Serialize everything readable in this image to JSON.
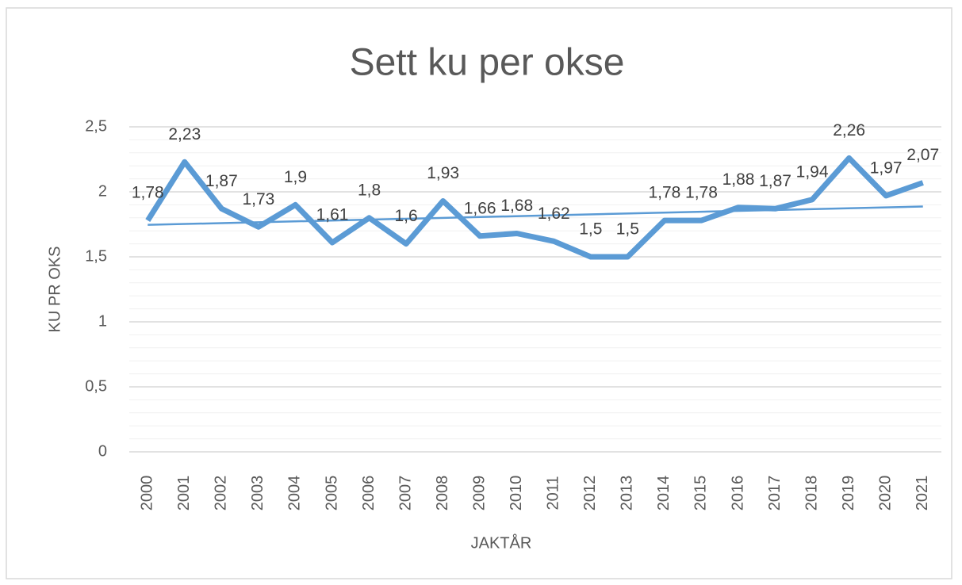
{
  "chart_data": {
    "type": "line",
    "title": "Sett ku per okse",
    "x_label": "JAKTÅR",
    "y_label": "KU PR OKS",
    "categories": [
      "2000",
      "2001",
      "2002",
      "2003",
      "2004",
      "2005",
      "2006",
      "2007",
      "2008",
      "2009",
      "2010",
      "2011",
      "2012",
      "2013",
      "2014",
      "2015",
      "2016",
      "2017",
      "2018",
      "2019",
      "2020",
      "2021"
    ],
    "series": [
      {
        "name": "Sett ku per okse",
        "color": "#5b9bd5",
        "values": [
          1.78,
          2.23,
          1.87,
          1.73,
          1.9,
          1.61,
          1.8,
          1.6,
          1.93,
          1.66,
          1.68,
          1.62,
          1.5,
          1.5,
          1.78,
          1.78,
          1.88,
          1.87,
          1.94,
          2.26,
          1.97,
          2.07
        ],
        "value_labels": [
          "1,78",
          "2,23",
          "1,87",
          "1,73",
          "1,9",
          "1,61",
          "1,8",
          "1,6",
          "1,93",
          "1,66",
          "1,68",
          "1,62",
          "1,5",
          "1,5",
          "1,78",
          "1,78",
          "1,88",
          "1,87",
          "1,94",
          "2,26",
          "1,97",
          "2,07"
        ],
        "trendline": "linear"
      }
    ],
    "ylim": [
      0,
      2.5
    ],
    "yticks": [
      0,
      {
        "value": 0.5,
        "label": "0,5"
      },
      1,
      {
        "value": 1.5,
        "label": "1,5"
      },
      2,
      {
        "value": 2.5,
        "label": "2,5"
      }
    ],
    "grid": true,
    "minor_grid_step": 0.1
  }
}
